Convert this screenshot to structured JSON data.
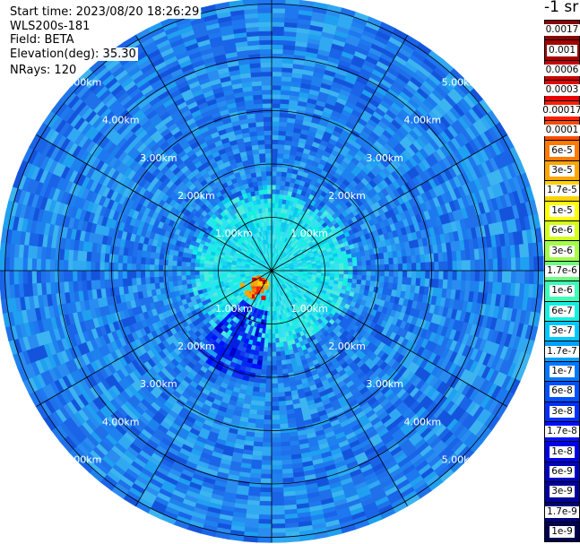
{
  "header": {
    "start_time": "Start time: 2023/08/20 18:26:29",
    "instrument": "WLS200s-181",
    "field": "Field: BETA",
    "elevation": "Elevation(deg): 35.30",
    "nrays": "NRays: 120"
  },
  "colorbar": {
    "unit_label": "-1 sr",
    "labels": [
      "0.0017",
      "0.001",
      "0.0006",
      "0.0003",
      "0.00017",
      "0.0001",
      "6e-5",
      "3e-5",
      "1.7e-5",
      "1e-5",
      "6e-6",
      "3e-6",
      "1.7e-6",
      "1e-6",
      "6e-7",
      "3e-7",
      "1.7e-7",
      "1e-7",
      "6e-8",
      "3e-8",
      "1.7e-8",
      "1e-8",
      "6e-9",
      "3e-9",
      "1.7e-9",
      "1e-9"
    ],
    "colors": [
      "#8b0000",
      "#a50000",
      "#c80000",
      "#e60000",
      "#ff1e00",
      "#ff4a00",
      "#ff7a00",
      "#ffa500",
      "#ffd200",
      "#ffff00",
      "#d4ff1a",
      "#a4ff48",
      "#6cff80",
      "#3cffb8",
      "#14f0e0",
      "#00c8ff",
      "#00a0ff",
      "#0078ff",
      "#0050ff",
      "#0030ff",
      "#0010ff",
      "#0000e6",
      "#0000c0",
      "#00009a",
      "#000078",
      "#000050"
    ]
  },
  "chart_data": {
    "type": "heatmap",
    "subtype": "polar PPI",
    "field": "BETA",
    "range_ring_labels": [
      "1.00km",
      "2.00km",
      "3.00km",
      "4.00km",
      "5.00km"
    ],
    "range_rings_km": [
      1,
      2,
      3,
      4,
      5
    ],
    "max_range_km": 5.0,
    "n_rays": 120,
    "spoke_angles_deg": [
      0,
      30,
      60,
      90,
      120,
      150,
      180,
      210,
      240,
      270,
      300,
      330
    ],
    "background_level": "1e-7",
    "near_range_level": "1e-6",
    "hotspot": {
      "direction": "south-southwest",
      "range_km": 0.4,
      "level": "1e-4"
    },
    "low_signal_sector": {
      "direction": "south-southwest",
      "from_km": 0.8,
      "to_km": 2.1,
      "level": "6e-9"
    }
  }
}
